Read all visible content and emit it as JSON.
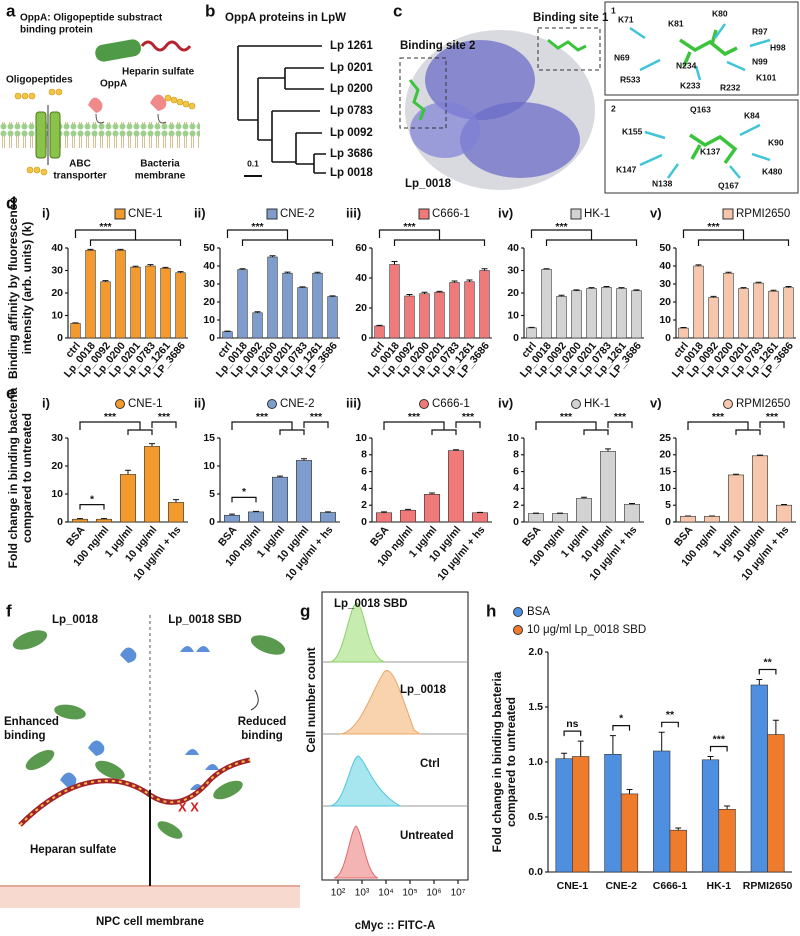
{
  "panel_labels": [
    "a",
    "b",
    "c",
    "d",
    "e",
    "f",
    "g",
    "h"
  ],
  "panel_a": {
    "title": [
      "OppA: Oligopeptide substract",
      "binding protein"
    ],
    "oligopeptides": "Oligopeptides",
    "oppa": "OppA",
    "heparin": "Heparin sulfate",
    "abc": [
      "ABC",
      "transporter"
    ],
    "membrane": [
      "Bacteria",
      "membrane"
    ]
  },
  "panel_b": {
    "title": "OppA proteins in LpW",
    "leaves": [
      "Lp 1261",
      "Lp 0201",
      "Lp 0200",
      "Lp 0783",
      "Lp 0092",
      "Lp 3686",
      "Lp 0018"
    ],
    "scale": "0.1"
  },
  "panel_c": {
    "site1": "Binding site 1",
    "site2": "Binding site 2",
    "protein": "Lp_0018",
    "inset1": {
      "label": "1",
      "residues": [
        "K71",
        "K80",
        "K81",
        "R97",
        "H98",
        "N99",
        "N69",
        "N234",
        "R533",
        "K233",
        "R232",
        "K101"
      ]
    },
    "inset2": {
      "label": "2",
      "residues": [
        "Q163",
        "K84",
        "K155",
        "K90",
        "K137",
        "K147",
        "N138",
        "Q167",
        "K480"
      ]
    }
  },
  "panel_d": {
    "y_label": [
      "Binding affinity by fluorescence",
      "intensity (arb. units) (k)"
    ]
  },
  "panel_e": {
    "y_label": [
      "Fold change in binding bacteria",
      "compared to untreated"
    ]
  },
  "panel_f": {
    "left_protein": "Lp_0018",
    "right_protein": "Lp_0018 SBD",
    "enhanced": [
      "Enhanced",
      "binding"
    ],
    "reduced": [
      "Reduced",
      "binding"
    ],
    "heparan": "Heparan sulfate",
    "membrane": "NPC cell membrane",
    "mark": "X X"
  },
  "panel_g": {
    "y_label": "Cell number count",
    "x_label": "cMyc :: FITC-A",
    "x_ticks": [
      "10²",
      "10³",
      "10⁴",
      "10⁵",
      "10⁶",
      "10⁷"
    ],
    "rows": [
      "Lp_0018 SBD",
      "Lp_0018",
      "Ctrl",
      "Untreated"
    ]
  },
  "chart_data": [
    {
      "type": "bar",
      "panel": "i)",
      "name": "CNE-1",
      "color": "#f39a2e",
      "legend_marker": "square",
      "categories": [
        "ctrl",
        "Lp_0018",
        "Lp_0092",
        "Lp_0200",
        "Lp_0201",
        "Lp_0783",
        "Lp_1261",
        "LP_3686"
      ],
      "values": [
        6.5,
        39,
        25,
        39,
        31.5,
        32,
        31,
        29
      ],
      "errors": [
        0.2,
        0.4,
        0.5,
        0.4,
        0.4,
        0.6,
        0.4,
        0.5
      ],
      "ylim": [
        0,
        40
      ],
      "yticks": [
        0,
        10,
        20,
        30,
        40
      ],
      "significance": "***"
    },
    {
      "type": "bar",
      "panel": "ii)",
      "name": "CNE-2",
      "color": "#7f9dcc",
      "legend_marker": "square",
      "categories": [
        "ctrl",
        "Lp_0018",
        "Lp_0092",
        "Lp_0200",
        "Lp_0201",
        "Lp_0783",
        "Lp_1261",
        "LP_3686"
      ],
      "values": [
        3.5,
        38,
        14,
        45,
        36,
        28,
        36,
        23
      ],
      "errors": [
        0.3,
        0.5,
        0.6,
        0.7,
        0.6,
        0.4,
        0.5,
        0.4
      ],
      "ylim": [
        0,
        50
      ],
      "yticks": [
        0,
        10,
        20,
        30,
        40,
        50
      ],
      "significance": "***"
    },
    {
      "type": "bar",
      "panel": "iii)",
      "name": "C666-1",
      "color": "#f07a7a",
      "legend_marker": "square",
      "categories": [
        "ctrl",
        "Lp_0018",
        "Lp_0092",
        "Lp_0200",
        "Lp_0201",
        "Lp_0783",
        "Lp_1261",
        "LP_3686"
      ],
      "values": [
        8,
        49,
        28,
        29.5,
        30.5,
        37,
        37.5,
        45
      ],
      "errors": [
        0.4,
        2,
        1,
        1,
        0.6,
        1,
        1.2,
        1.2
      ],
      "ylim": [
        0,
        60
      ],
      "yticks": [
        0,
        20,
        40,
        60
      ],
      "significance": "***"
    },
    {
      "type": "bar",
      "panel": "iv)",
      "name": "HK-1",
      "color": "#d3d3d3",
      "legend_marker": "square",
      "categories": [
        "ctrl",
        "Lp_0018",
        "Lp_0092",
        "Lp_0200",
        "Lp_0201",
        "Lp_0783",
        "Lp_1261",
        "LP_3686"
      ],
      "values": [
        4.5,
        30.5,
        18.5,
        21,
        22,
        22.5,
        22,
        21
      ],
      "errors": [
        0.2,
        0.3,
        0.5,
        0.4,
        0.4,
        0.4,
        0.4,
        0.4
      ],
      "ylim": [
        0,
        40
      ],
      "yticks": [
        0,
        10,
        20,
        30,
        40
      ],
      "significance": "***"
    },
    {
      "type": "bar",
      "panel": "v)",
      "name": "RPMI2650",
      "color": "#f6c7ad",
      "legend_marker": "square",
      "categories": [
        "ctrl",
        "Lp_0018",
        "Lp_0092",
        "Lp_0200",
        "Lp_0201",
        "Lp_0783",
        "Lp_1261",
        "LP_3686"
      ],
      "values": [
        5.5,
        40,
        22.5,
        36,
        27.5,
        30.5,
        26,
        28
      ],
      "errors": [
        0.3,
        0.6,
        0.6,
        0.5,
        0.5,
        0.5,
        0.5,
        0.6
      ],
      "ylim": [
        0,
        50
      ],
      "yticks": [
        0,
        10,
        20,
        30,
        40,
        50
      ],
      "significance": "***"
    },
    {
      "type": "bar",
      "panel": "i)",
      "name": "CNE-1",
      "color": "#f39a2e",
      "legend_marker": "circle",
      "categories": [
        "BSA",
        "100 ng/ml",
        "1 μg/ml",
        "10 μg/ml",
        "10 μg/ml + hs"
      ],
      "values": [
        1,
        1,
        17,
        27,
        7
      ],
      "errors": [
        0.2,
        0.2,
        1.5,
        1,
        1
      ],
      "ylim": [
        0,
        30
      ],
      "yticks": [
        0,
        10,
        20,
        30
      ],
      "significance": [
        "*",
        "***",
        "***"
      ]
    },
    {
      "type": "bar",
      "panel": "ii)",
      "name": "CNE-2",
      "color": "#7f9dcc",
      "legend_marker": "circle",
      "categories": [
        "BSA",
        "100 ng/ml",
        "1 μg/ml",
        "10 μg/ml",
        "10 μg/ml + hs"
      ],
      "values": [
        1.2,
        1.8,
        8,
        11,
        1.7
      ],
      "errors": [
        0.2,
        0.1,
        0.2,
        0.3,
        0.1
      ],
      "ylim": [
        0,
        15
      ],
      "yticks": [
        0,
        5,
        10,
        15
      ],
      "significance": [
        "*",
        "***",
        "***"
      ]
    },
    {
      "type": "bar",
      "panel": "iii)",
      "name": "C666-1",
      "color": "#f07a7a",
      "legend_marker": "circle",
      "categories": [
        "BSA",
        "100 ng/ml",
        "1 μg/ml",
        "10 μg/ml",
        "10 μg/ml + hs"
      ],
      "values": [
        1.1,
        1.4,
        3.3,
        8.5,
        1.1
      ],
      "errors": [
        0.1,
        0.1,
        0.15,
        0.1,
        0.05
      ],
      "ylim": [
        0,
        10
      ],
      "yticks": [
        0,
        2,
        4,
        6,
        8,
        10
      ],
      "significance": [
        "***",
        "***"
      ]
    },
    {
      "type": "bar",
      "panel": "iv)",
      "name": "HK-1",
      "color": "#d3d3d3",
      "legend_marker": "circle",
      "categories": [
        "BSA",
        "100 ng/ml",
        "1 μg/ml",
        "10 μg/ml",
        "10 μg/ml + hs"
      ],
      "values": [
        1,
        1,
        2.8,
        8.4,
        2.1
      ],
      "errors": [
        0.05,
        0.05,
        0.15,
        0.3,
        0.1
      ],
      "ylim": [
        0,
        10
      ],
      "yticks": [
        0,
        2,
        4,
        6,
        8,
        10
      ],
      "significance": [
        "***",
        "***"
      ]
    },
    {
      "type": "bar",
      "panel": "v)",
      "name": "RPMI2650",
      "color": "#f6c7ad",
      "legend_marker": "circle",
      "categories": [
        "BSA",
        "100 ng/ml",
        "1 μg/ml",
        "10 μg/ml",
        "10 μg/ml + hs"
      ],
      "values": [
        1.7,
        1.7,
        14,
        19.7,
        5
      ],
      "errors": [
        0.1,
        0.1,
        0.2,
        0.2,
        0.2
      ],
      "ylim": [
        0,
        25
      ],
      "yticks": [
        0,
        5,
        10,
        15,
        20,
        25
      ],
      "significance": [
        "***",
        "***"
      ]
    },
    {
      "type": "grouped_bar",
      "y_label": [
        "Fold change in binding bacteria",
        "compared to untreated"
      ],
      "categories": [
        "CNE-1",
        "CNE-2",
        "C666-1",
        "HK-1",
        "RPMI2650"
      ],
      "series": [
        {
          "name": "BSA",
          "color": "#4f8fe0",
          "values": [
            1.03,
            1.07,
            1.1,
            1.02,
            1.7
          ],
          "errors": [
            0.05,
            0.17,
            0.17,
            0.03,
            0.05
          ]
        },
        {
          "name": "10 μg/ml Lp_0018 SBD",
          "color": "#ef7b2c",
          "values": [
            1.05,
            0.71,
            0.38,
            0.57,
            1.25
          ],
          "errors": [
            0.14,
            0.04,
            0.02,
            0.03,
            0.13
          ]
        }
      ],
      "ylim": [
        0,
        2
      ],
      "yticks": [
        {
          "value": 0,
          "label": "0.0"
        },
        0.5,
        {
          "value": 1,
          "label": "1.0"
        },
        1.5,
        {
          "value": 2,
          "label": "2.0"
        }
      ],
      "legend": "top-left",
      "significance": [
        "ns",
        "*",
        "**",
        "***",
        "**"
      ]
    }
  ]
}
